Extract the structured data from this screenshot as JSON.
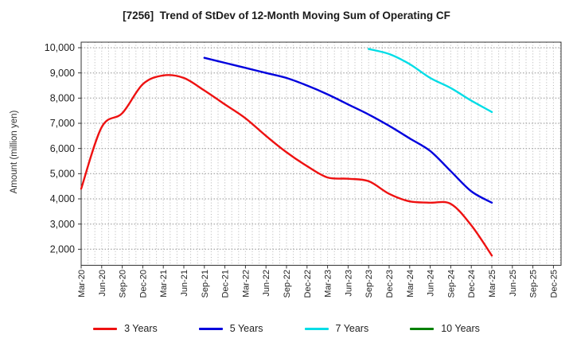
{
  "chart_data": {
    "type": "line",
    "title": "[7256]  Trend of StDev of 12-Month Moving Sum of Operating CF",
    "ylabel": "Amount (million yen)",
    "xlabel": "",
    "categories": [
      "Mar-20",
      "Jun-20",
      "Sep-20",
      "Dec-20",
      "Mar-21",
      "Jun-21",
      "Sep-21",
      "Dec-21",
      "Mar-22",
      "Jun-22",
      "Sep-22",
      "Dec-22",
      "Mar-23",
      "Jun-23",
      "Sep-23",
      "Dec-23",
      "Mar-24",
      "Jun-24",
      "Sep-24",
      "Dec-24",
      "Mar-25",
      "Jun-25",
      "Sep-25",
      "Dec-25"
    ],
    "y_ticks": [
      2000,
      3000,
      4000,
      5000,
      6000,
      7000,
      8000,
      9000,
      10000
    ],
    "ylim": [
      1400,
      10230
    ],
    "grid": "dotted gray; vertical lines monthly, horizontal lines every 1000",
    "legend_position": "bottom",
    "series": [
      {
        "name": "3 Years",
        "color": "#ee1111",
        "values": [
          4400,
          6850,
          7400,
          8550,
          8900,
          8800,
          8300,
          7750,
          7200,
          6500,
          5850,
          5300,
          4850,
          4800,
          4700,
          4200,
          3900,
          3850,
          3800,
          2950,
          1750,
          null,
          null,
          null
        ]
      },
      {
        "name": "5 Years",
        "color": "#0000dd",
        "values": [
          null,
          null,
          null,
          null,
          null,
          null,
          9600,
          9400,
          9200,
          9000,
          8800,
          8500,
          8150,
          7750,
          7350,
          6900,
          6400,
          5900,
          5100,
          4300,
          3850,
          null,
          null,
          null
        ]
      },
      {
        "name": "7 Years",
        "color": "#00dde6",
        "values": [
          null,
          null,
          null,
          null,
          null,
          null,
          null,
          null,
          null,
          null,
          null,
          null,
          null,
          null,
          9950,
          9750,
          9350,
          8800,
          8400,
          7900,
          7450,
          null,
          null,
          null
        ]
      },
      {
        "name": "10 Years",
        "color": "#008000",
        "values": [
          null,
          null,
          null,
          null,
          null,
          null,
          null,
          null,
          null,
          null,
          null,
          null,
          null,
          null,
          null,
          null,
          null,
          null,
          null,
          null,
          null,
          null,
          null,
          null
        ]
      }
    ]
  }
}
